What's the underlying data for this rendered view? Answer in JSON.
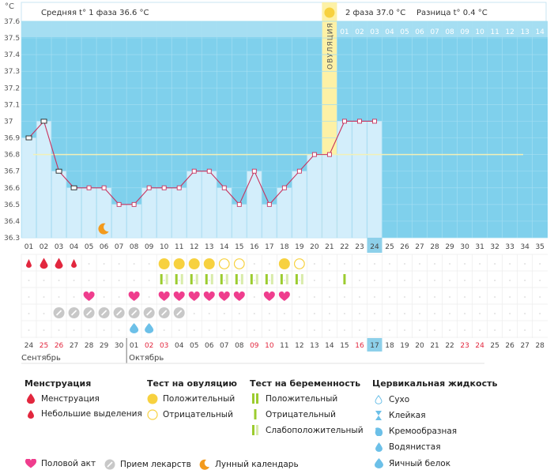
{
  "header": {
    "unit": "°C",
    "phase1": "Средняя t° 1 фаза 36.6 °C",
    "phase2": "2 фаза 37.0 °C",
    "difference": "Разница t° 0.4 °C",
    "ovulation_label": "ОВУЛЯЦИЯ"
  },
  "chart_data": {
    "type": "line",
    "title": "",
    "ylabel": "°C",
    "ylim": [
      36.3,
      37.6
    ],
    "y_ticks": [
      "36.3",
      "36.4",
      "36.5",
      "36.6",
      "36.7",
      "36.8",
      "36.9",
      "37",
      "37.1",
      "37.2",
      "37.3",
      "37.4",
      "37.5",
      "37.6"
    ],
    "cycle_days": [
      "01",
      "02",
      "03",
      "04",
      "05",
      "06",
      "07",
      "08",
      "09",
      "10",
      "11",
      "12",
      "13",
      "14",
      "15",
      "16",
      "17",
      "18",
      "19",
      "20",
      "21",
      "22",
      "23",
      "24",
      "25",
      "26",
      "27",
      "28",
      "29",
      "30",
      "31",
      "32",
      "33",
      "34",
      "35"
    ],
    "phase2_days": [
      "01",
      "02",
      "03",
      "04",
      "05",
      "06",
      "07",
      "08",
      "09",
      "10",
      "11",
      "12",
      "13",
      "14"
    ],
    "series": [
      {
        "values": [
          36.9,
          37.0,
          36.7,
          36.6,
          36.6,
          36.6,
          36.5,
          36.5,
          36.6,
          36.6,
          36.6,
          36.7,
          36.7,
          36.6,
          36.5,
          36.7,
          36.5,
          36.6,
          36.7,
          36.8,
          36.8,
          37.0,
          37.0,
          37.0
        ]
      }
    ],
    "coverline": 36.8,
    "ovulation_day": 21,
    "current_day": 24,
    "moon_day": 6,
    "date_days": [
      {
        "d": "24",
        "red": false
      },
      {
        "d": "25",
        "red": true
      },
      {
        "d": "26",
        "red": true
      },
      {
        "d": "27",
        "red": false
      },
      {
        "d": "28",
        "red": false
      },
      {
        "d": "29",
        "red": false
      },
      {
        "d": "30",
        "red": false
      },
      {
        "d": "01",
        "red": false
      },
      {
        "d": "02",
        "red": true
      },
      {
        "d": "03",
        "red": true
      },
      {
        "d": "04",
        "red": false
      },
      {
        "d": "05",
        "red": false
      },
      {
        "d": "06",
        "red": false
      },
      {
        "d": "07",
        "red": false
      },
      {
        "d": "08",
        "red": false
      },
      {
        "d": "09",
        "red": true
      },
      {
        "d": "10",
        "red": true
      },
      {
        "d": "11",
        "red": false
      },
      {
        "d": "12",
        "red": false
      },
      {
        "d": "13",
        "red": false
      },
      {
        "d": "14",
        "red": false
      },
      {
        "d": "15",
        "red": false
      },
      {
        "d": "16",
        "red": true
      },
      {
        "d": "17",
        "red": false
      },
      {
        "d": "18",
        "red": false
      },
      {
        "d": "19",
        "red": false
      },
      {
        "d": "20",
        "red": false
      },
      {
        "d": "21",
        "red": false
      },
      {
        "d": "22",
        "red": false
      },
      {
        "d": "23",
        "red": true
      },
      {
        "d": "24",
        "red": true
      },
      {
        "d": "25",
        "red": false
      },
      {
        "d": "26",
        "red": false
      },
      {
        "d": "27",
        "red": false
      },
      {
        "d": "28",
        "red": false
      }
    ],
    "months": [
      {
        "label": "Сентябрь",
        "start_day": 1
      },
      {
        "label": "Октябрь",
        "start_day": 8
      }
    ],
    "symptoms": {
      "menstruation": {
        "days": [
          1,
          2,
          3,
          4
        ],
        "sizes": [
          "small",
          "big",
          "big",
          "small"
        ]
      },
      "ovulation_test": {
        "days": [
          10,
          11,
          12,
          13,
          14,
          15,
          18,
          19
        ],
        "results": [
          "pos",
          "pos",
          "pos",
          "pos",
          "neg",
          "neg",
          "pos",
          "neg"
        ]
      },
      "pregnancy_test": {
        "days": [
          10,
          11,
          12,
          13,
          14,
          15,
          16,
          17,
          18,
          19,
          22
        ],
        "results": [
          "weak",
          "weak",
          "weak",
          "weak",
          "weak",
          "weak",
          "weak",
          "weak",
          "weak",
          "weak",
          "neg"
        ]
      },
      "intercourse": {
        "days": [
          5,
          8,
          10,
          11,
          12,
          13,
          14,
          15,
          17,
          18
        ]
      },
      "medication": {
        "days": [
          3,
          4,
          5,
          6,
          7,
          8,
          9,
          10,
          11
        ]
      },
      "cervical_fluid": {
        "days": [
          8,
          9
        ],
        "types": [
          "egg_white",
          "egg_white"
        ]
      }
    },
    "colors": {
      "bg_blue": "#7fd0ec",
      "bar_fill": "#d3eefb",
      "line": "#c8325e",
      "ovulation": "#fdf1a6",
      "today": "#8dd0ea",
      "coverline": "#f2f0b8",
      "red": "#e2273e",
      "yellow": "#f7d13f",
      "green": "#9ccc2f",
      "pink": "#ef3d8d",
      "gray": "#c8c8c8",
      "moon": "#f39a1c",
      "drop": "#6cc0e8"
    }
  },
  "legend": {
    "menstruation": {
      "title": "Менструация",
      "items": [
        "Менструация",
        "Небольшие выделения"
      ]
    },
    "ovulation_test": {
      "title": "Тест на овуляцию",
      "items": [
        "Положительный",
        "Отрицательный"
      ]
    },
    "pregnancy_test": {
      "title": "Тест на беременность",
      "items": [
        "Положительный",
        "Отрицательный",
        "Слабоположительный"
      ]
    },
    "cervical": {
      "title": "Цервикальная жидкость",
      "items": [
        "Сухо",
        "Клейкая",
        "Кремообразная",
        "Водянистая",
        "Яичный белок"
      ]
    },
    "bottom": [
      "Половой акт",
      "Прием лекарств",
      "Лунный календарь"
    ]
  }
}
